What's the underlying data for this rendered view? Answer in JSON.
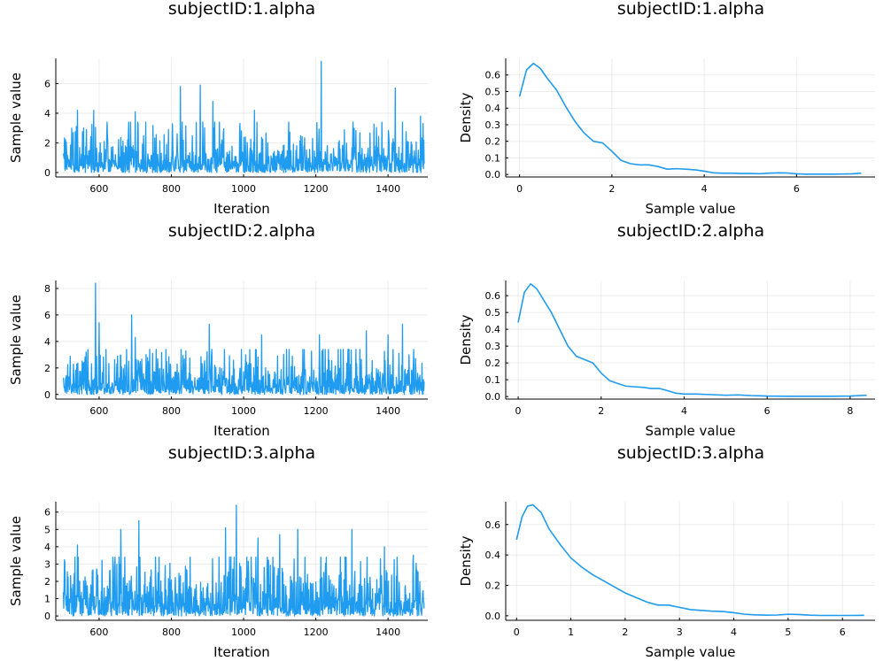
{
  "series_color": "#1f9bef",
  "chart_data": [
    {
      "type": "line",
      "title": "subjectID:1.alpha",
      "xlabel": "Iteration",
      "ylabel": "Sample value",
      "xlim": [
        480,
        1510
      ],
      "ylim": [
        -0.3,
        7.7
      ],
      "xticks": [
        600,
        800,
        1000,
        1200,
        1400
      ],
      "yticks": [
        0,
        2,
        4,
        6
      ],
      "grid": true,
      "trace": {
        "start": 501,
        "end": 1500,
        "seed": 11,
        "mean": 1.0,
        "spikes": [
          [
            540,
            4.2
          ],
          [
            585,
            4.2
          ],
          [
            700,
            4.1
          ],
          [
            825,
            5.8
          ],
          [
            880,
            5.9
          ],
          [
            915,
            4.8
          ],
          [
            1030,
            4.2
          ],
          [
            1215,
            7.5
          ],
          [
            1420,
            5.7
          ],
          [
            1490,
            3.8
          ]
        ]
      }
    },
    {
      "type": "line",
      "title": "subjectID:1.alpha",
      "xlabel": "Sample value",
      "ylabel": "Density",
      "xlim": [
        -0.3,
        7.7
      ],
      "ylim": [
        -0.015,
        0.7
      ],
      "xticks": [
        0,
        2,
        4,
        6
      ],
      "yticks": [
        0.0,
        0.1,
        0.2,
        0.3,
        0.4,
        0.5,
        0.6
      ],
      "grid": true,
      "x": [
        0,
        0.15,
        0.3,
        0.45,
        0.6,
        0.8,
        1.0,
        1.2,
        1.4,
        1.6,
        1.8,
        2.0,
        2.2,
        2.4,
        2.6,
        2.8,
        3.0,
        3.2,
        3.4,
        3.6,
        3.8,
        4.0,
        4.2,
        4.4,
        4.6,
        4.8,
        5.0,
        5.2,
        5.4,
        5.6,
        5.8,
        6.0,
        6.2,
        6.4,
        6.6,
        6.8,
        7.0,
        7.2,
        7.4
      ],
      "y": [
        0.47,
        0.63,
        0.67,
        0.64,
        0.58,
        0.51,
        0.41,
        0.32,
        0.25,
        0.2,
        0.19,
        0.14,
        0.085,
        0.065,
        0.058,
        0.058,
        0.048,
        0.032,
        0.035,
        0.032,
        0.028,
        0.02,
        0.01,
        0.008,
        0.008,
        0.006,
        0.006,
        0.005,
        0.008,
        0.01,
        0.009,
        0.004,
        0.002,
        0.002,
        0.002,
        0.002,
        0.003,
        0.004,
        0.008
      ]
    },
    {
      "type": "line",
      "title": "subjectID:2.alpha",
      "xlabel": "Iteration",
      "ylabel": "Sample value",
      "xlim": [
        480,
        1510
      ],
      "ylim": [
        -0.35,
        8.6
      ],
      "xticks": [
        600,
        800,
        1000,
        1200,
        1400
      ],
      "yticks": [
        0,
        2,
        4,
        6,
        8
      ],
      "grid": true,
      "trace": {
        "start": 501,
        "end": 1500,
        "seed": 23,
        "mean": 1.0,
        "spikes": [
          [
            590,
            8.4
          ],
          [
            600,
            5.4
          ],
          [
            690,
            6.0
          ],
          [
            700,
            4.3
          ],
          [
            905,
            5.3
          ],
          [
            1050,
            4.5
          ],
          [
            1210,
            4.5
          ],
          [
            1340,
            4.8
          ],
          [
            1400,
            4.5
          ],
          [
            1440,
            5.3
          ]
        ]
      }
    },
    {
      "type": "line",
      "title": "subjectID:2.alpha",
      "xlabel": "Sample value",
      "ylabel": "Density",
      "xlim": [
        -0.3,
        8.6
      ],
      "ylim": [
        -0.015,
        0.69
      ],
      "xticks": [
        0,
        2,
        4,
        6,
        8
      ],
      "yticks": [
        0.0,
        0.1,
        0.2,
        0.3,
        0.4,
        0.5,
        0.6
      ],
      "grid": true,
      "x": [
        0,
        0.15,
        0.3,
        0.45,
        0.6,
        0.8,
        1.0,
        1.2,
        1.4,
        1.6,
        1.8,
        2.0,
        2.2,
        2.4,
        2.6,
        2.8,
        3.0,
        3.2,
        3.4,
        3.6,
        3.8,
        4.0,
        4.3,
        4.6,
        5.0,
        5.3,
        5.6,
        6.0,
        6.5,
        7.0,
        7.5,
        8.0,
        8.4
      ],
      "y": [
        0.44,
        0.62,
        0.67,
        0.64,
        0.58,
        0.5,
        0.4,
        0.3,
        0.24,
        0.22,
        0.2,
        0.14,
        0.095,
        0.078,
        0.062,
        0.058,
        0.055,
        0.048,
        0.048,
        0.035,
        0.02,
        0.015,
        0.015,
        0.012,
        0.008,
        0.01,
        0.006,
        0.003,
        0.002,
        0.002,
        0.002,
        0.003,
        0.008
      ]
    },
    {
      "type": "line",
      "title": "subjectID:3.alpha",
      "xlabel": "Iteration",
      "ylabel": "Sample value",
      "xlim": [
        480,
        1510
      ],
      "ylim": [
        -0.25,
        6.6
      ],
      "xticks": [
        600,
        800,
        1000,
        1200,
        1400
      ],
      "yticks": [
        0,
        1,
        2,
        3,
        4,
        5,
        6
      ],
      "grid": true,
      "trace": {
        "start": 501,
        "end": 1500,
        "seed": 37,
        "mean": 1.1,
        "spikes": [
          [
            540,
            4.1
          ],
          [
            660,
            5.0
          ],
          [
            710,
            5.5
          ],
          [
            950,
            5.1
          ],
          [
            980,
            6.4
          ],
          [
            1040,
            4.5
          ],
          [
            1100,
            4.7
          ],
          [
            1150,
            5.0
          ],
          [
            1300,
            5.0
          ],
          [
            1390,
            4.0
          ],
          [
            1470,
            3.5
          ]
        ]
      }
    },
    {
      "type": "line",
      "title": "subjectID:3.alpha",
      "xlabel": "Sample value",
      "ylabel": "Density",
      "xlim": [
        -0.2,
        6.6
      ],
      "ylim": [
        -0.03,
        0.75
      ],
      "xticks": [
        0,
        1,
        2,
        3,
        4,
        5,
        6
      ],
      "yticks": [
        0.0,
        0.2,
        0.4,
        0.6
      ],
      "grid": true,
      "x": [
        0,
        0.1,
        0.2,
        0.3,
        0.45,
        0.6,
        0.8,
        1.0,
        1.2,
        1.4,
        1.6,
        1.8,
        2.0,
        2.2,
        2.4,
        2.6,
        2.8,
        3.0,
        3.2,
        3.4,
        3.6,
        3.8,
        4.0,
        4.2,
        4.4,
        4.6,
        4.8,
        5.0,
        5.2,
        5.4,
        5.6,
        5.8,
        6.0,
        6.2,
        6.4
      ],
      "y": [
        0.5,
        0.65,
        0.72,
        0.73,
        0.68,
        0.57,
        0.47,
        0.38,
        0.32,
        0.27,
        0.23,
        0.19,
        0.15,
        0.12,
        0.09,
        0.07,
        0.07,
        0.055,
        0.04,
        0.035,
        0.03,
        0.028,
        0.02,
        0.01,
        0.006,
        0.004,
        0.005,
        0.01,
        0.008,
        0.004,
        0.002,
        0.002,
        0.002,
        0.002,
        0.003
      ]
    }
  ]
}
